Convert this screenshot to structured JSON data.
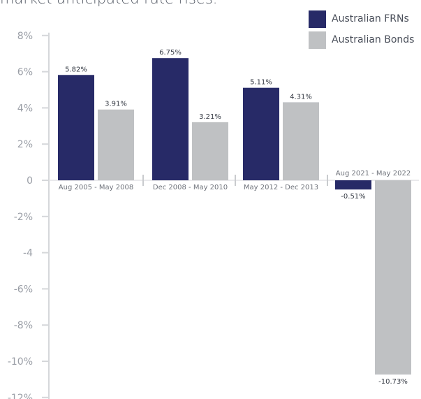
{
  "caption_fragment": "market anticipated rate rises.",
  "chart_data": {
    "type": "bar",
    "categories": [
      "Aug 2005 - May 2008",
      "Dec 2008 - May 2010",
      "May 2012 - Dec 2013",
      "Aug 2021 - May 2022"
    ],
    "series": [
      {
        "name": "Australian FRNs",
        "color": "#272a67",
        "values": [
          5.82,
          6.75,
          5.11,
          -0.51
        ],
        "labels": [
          "5.82%",
          "6.75%",
          "5.11%",
          "-0.51%"
        ]
      },
      {
        "name": "Australian Bonds",
        "color": "#bfc1c3",
        "values": [
          3.91,
          3.21,
          4.31,
          -10.73
        ],
        "labels": [
          "3.91%",
          "3.21%",
          "4.31%",
          "-10.73%"
        ]
      }
    ],
    "yticks": [
      {
        "value": 8,
        "label": "8%"
      },
      {
        "value": 6,
        "label": "6%"
      },
      {
        "value": 4,
        "label": "4%"
      },
      {
        "value": 2,
        "label": "2%"
      },
      {
        "value": 0,
        "label": "0"
      },
      {
        "value": -2,
        "label": "-2%"
      },
      {
        "value": -4,
        "label": "-4"
      },
      {
        "value": -6,
        "label": "-6%"
      },
      {
        "value": -8,
        "label": "-8%"
      },
      {
        "value": -10,
        "label": "-10%"
      },
      {
        "value": -12,
        "label": "-12%"
      }
    ],
    "ylim": [
      -12,
      8
    ],
    "legend_position": "top-right",
    "grid": false,
    "xlabel": "",
    "ylabel": ""
  }
}
